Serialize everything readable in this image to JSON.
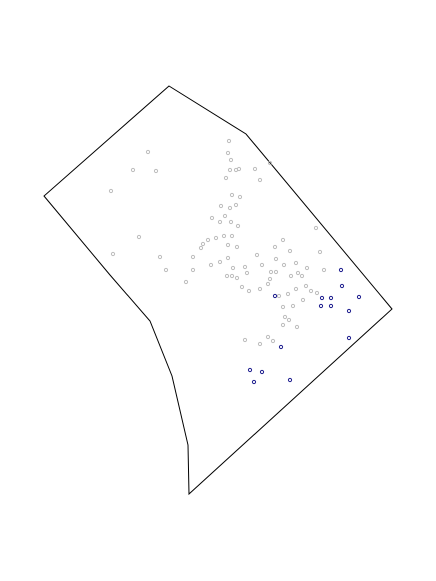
{
  "map": {
    "colors": {
      "background": "#ffffff",
      "boundary_stroke": "#000000",
      "point_gray": "#bdbdbd",
      "point_blue": "#1f1f8f"
    }
  }
}
